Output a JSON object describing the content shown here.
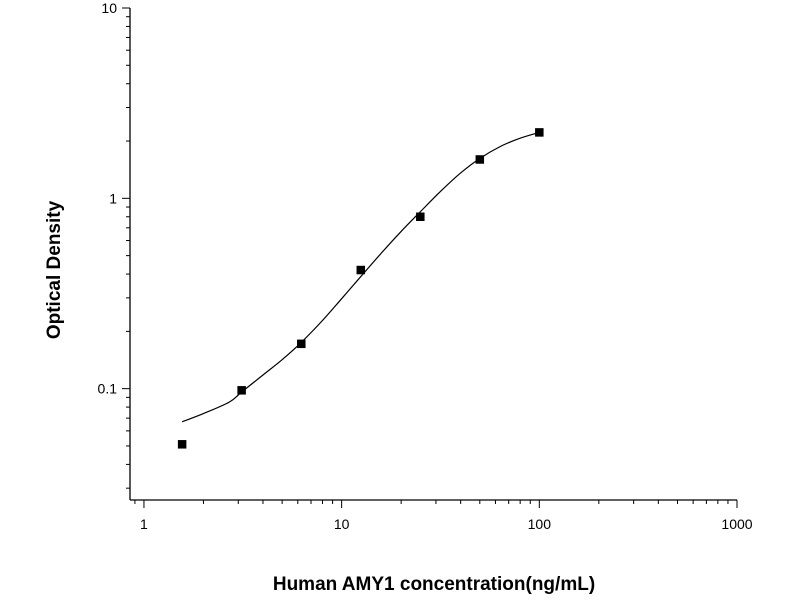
{
  "chart_data": {
    "type": "scatter",
    "title": "",
    "xlabel": "Human AMY1 concentration(ng/mL)",
    "ylabel": "Optical Density",
    "x_scale": "log",
    "y_scale": "log",
    "xlim": [
      0.85,
      1000
    ],
    "ylim": [
      0.026,
      10
    ],
    "x_ticks": [
      {
        "value": 1,
        "label": "1"
      },
      {
        "value": 10,
        "label": "10"
      },
      {
        "value": 100,
        "label": "100"
      },
      {
        "value": 1000,
        "label": "1000"
      }
    ],
    "y_ticks": [
      {
        "value": 0.1,
        "label": "0.1"
      },
      {
        "value": 1,
        "label": "1"
      },
      {
        "value": 10,
        "label": "10"
      }
    ],
    "grid": false,
    "legend": "none",
    "colors": {
      "points": "#000000",
      "curve": "#000000",
      "axes": "#000000"
    },
    "series": [
      {
        "kind": "points",
        "marker": "square",
        "points": [
          {
            "x": 1.56,
            "y": 0.051
          },
          {
            "x": 3.12,
            "y": 0.098
          },
          {
            "x": 6.25,
            "y": 0.172
          },
          {
            "x": 12.5,
            "y": 0.42
          },
          {
            "x": 25,
            "y": 0.8
          },
          {
            "x": 50,
            "y": 1.6
          },
          {
            "x": 100,
            "y": 2.22
          }
        ]
      },
      {
        "kind": "fitted-curve",
        "points": [
          {
            "x": 1.56,
            "y": 0.067
          },
          {
            "x": 2.0,
            "y": 0.074
          },
          {
            "x": 2.7,
            "y": 0.085
          },
          {
            "x": 3.12,
            "y": 0.096
          },
          {
            "x": 4.0,
            "y": 0.118
          },
          {
            "x": 5.0,
            "y": 0.142
          },
          {
            "x": 6.25,
            "y": 0.175
          },
          {
            "x": 8.0,
            "y": 0.228
          },
          {
            "x": 10.0,
            "y": 0.297
          },
          {
            "x": 12.5,
            "y": 0.388
          },
          {
            "x": 16.0,
            "y": 0.52
          },
          {
            "x": 20.0,
            "y": 0.67
          },
          {
            "x": 25.0,
            "y": 0.85
          },
          {
            "x": 32.0,
            "y": 1.1
          },
          {
            "x": 40.0,
            "y": 1.36
          },
          {
            "x": 50.0,
            "y": 1.62
          },
          {
            "x": 64.0,
            "y": 1.88
          },
          {
            "x": 80.0,
            "y": 2.07
          },
          {
            "x": 100.0,
            "y": 2.22
          }
        ]
      }
    ]
  }
}
